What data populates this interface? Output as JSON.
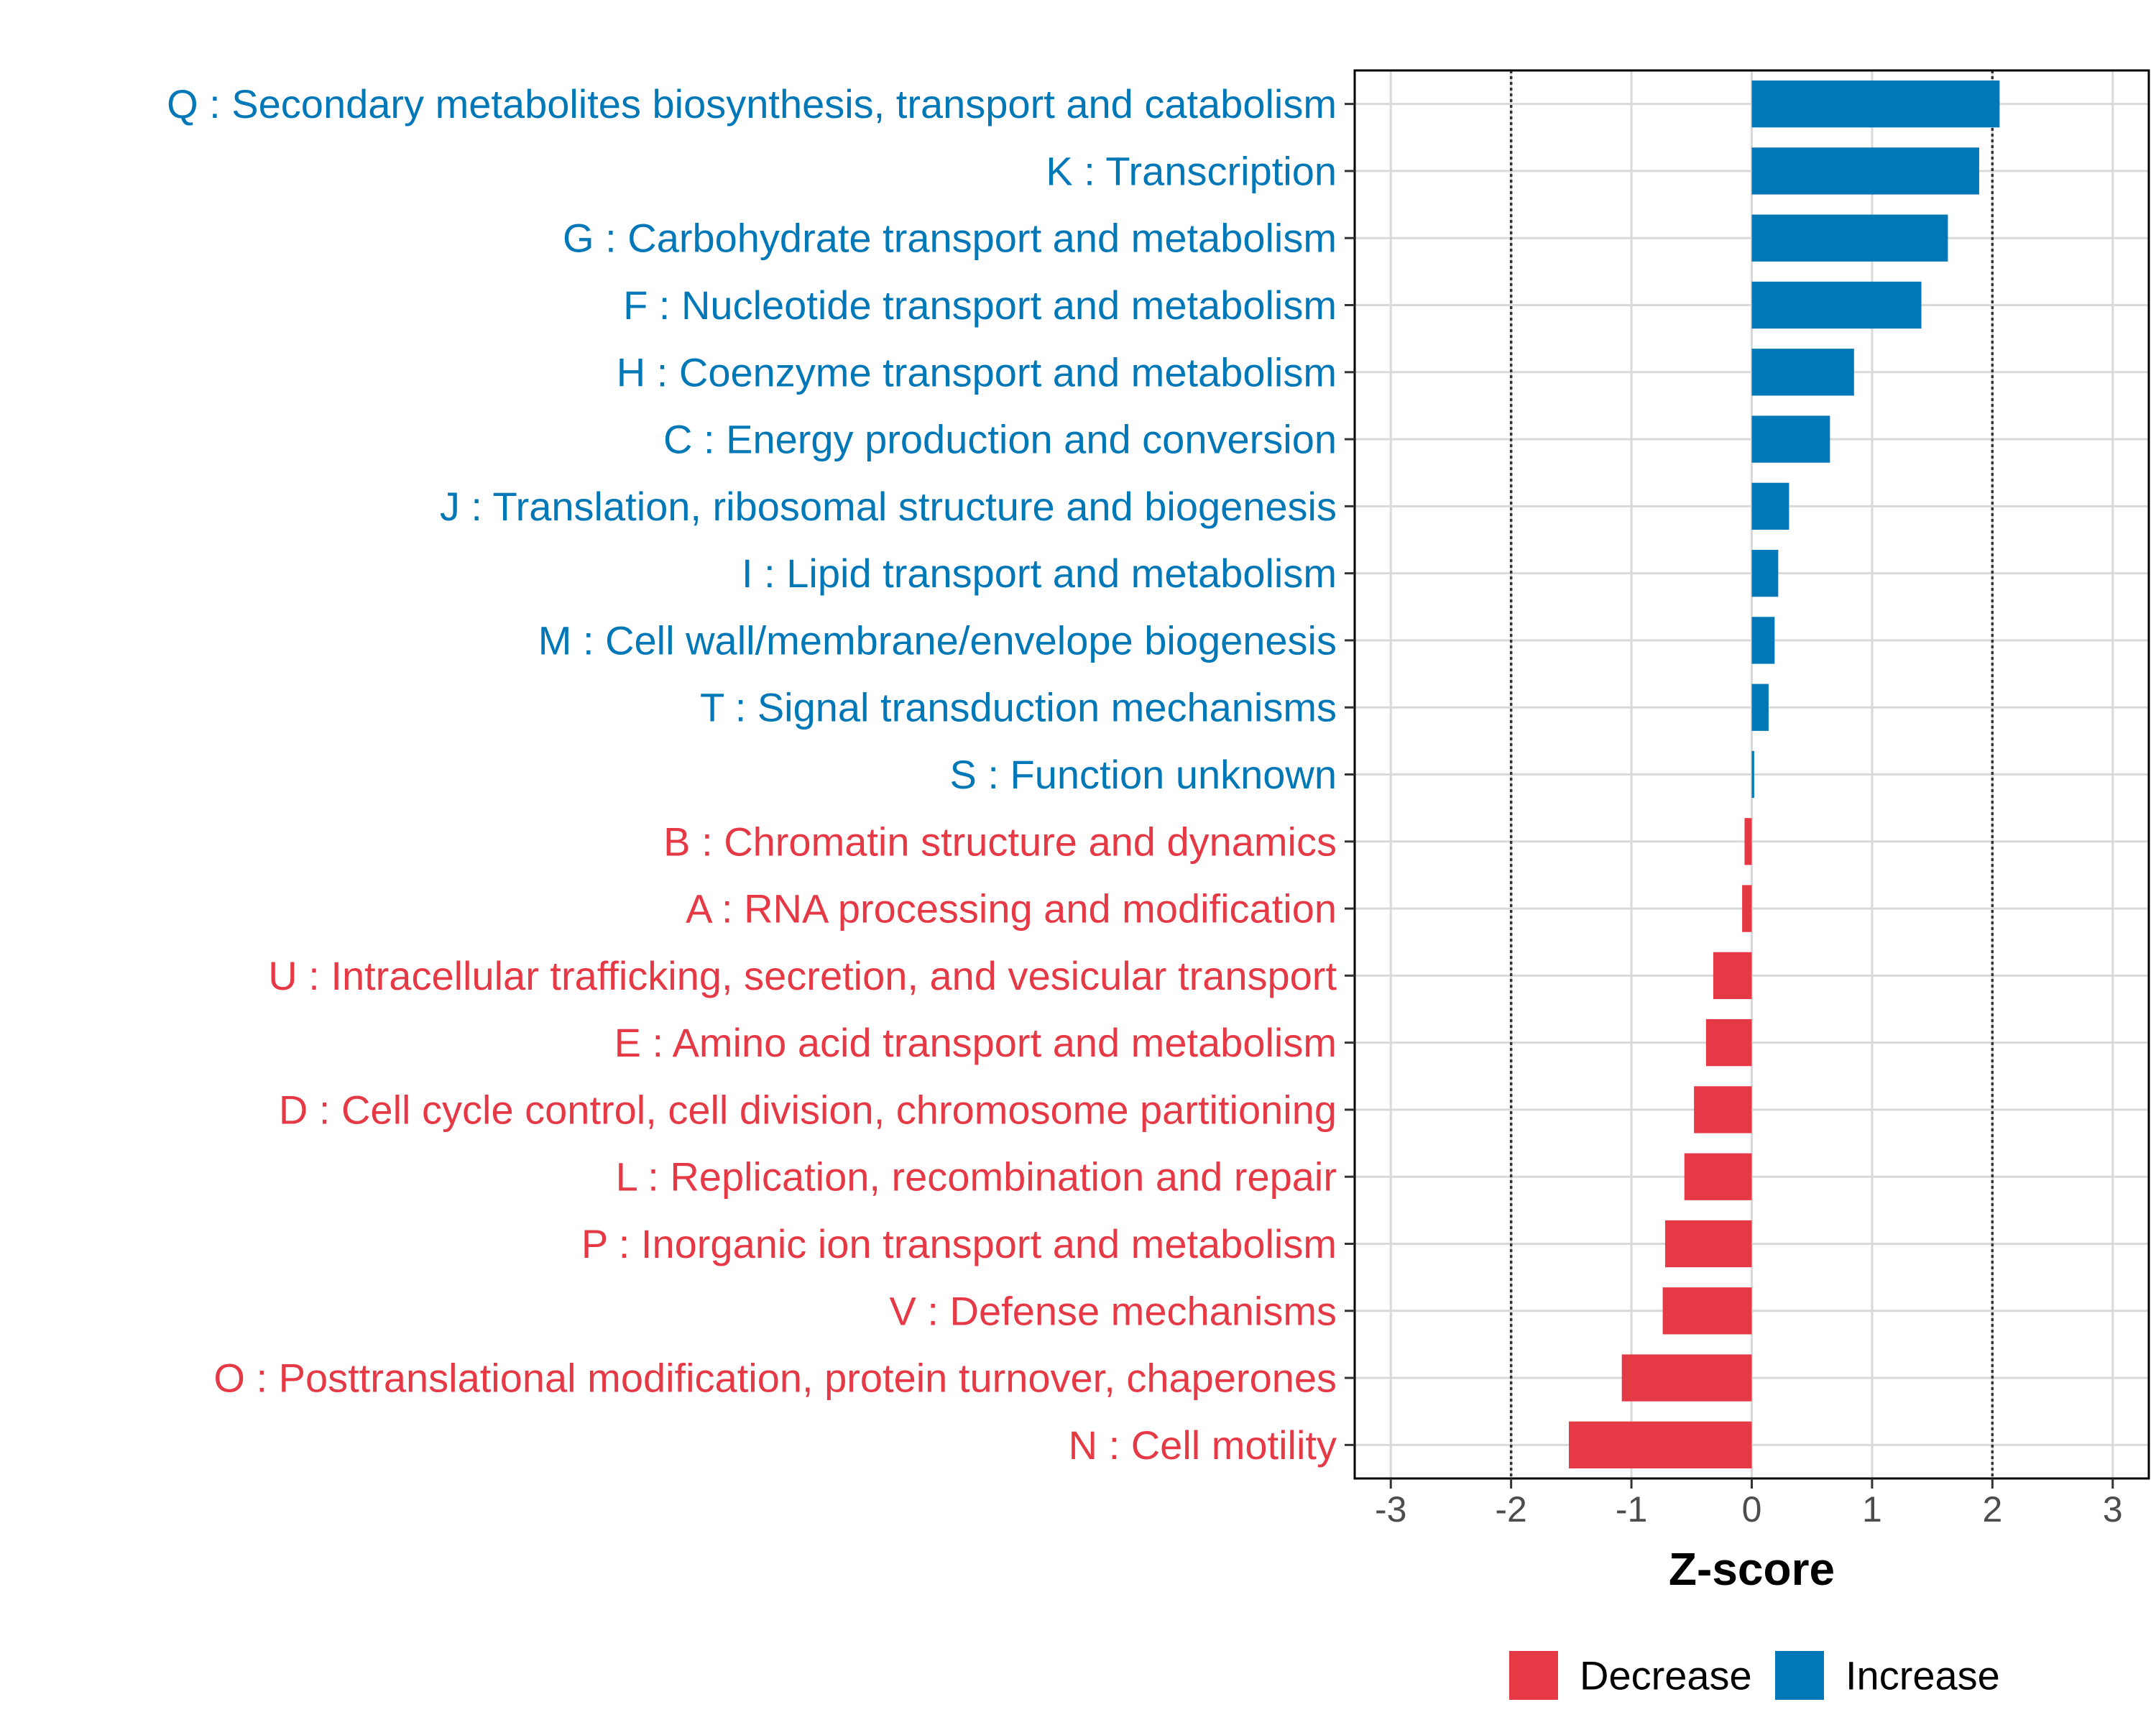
{
  "chart_data": {
    "type": "bar",
    "orientation": "horizontal",
    "xlabel": "Z-score",
    "ylabel": "",
    "xlim": [
      -3.3,
      3.3
    ],
    "xticks": [
      -3,
      -2,
      -1,
      0,
      1,
      2,
      3
    ],
    "tick_labels": [
      "-3",
      "-2",
      "-1",
      "0",
      "1",
      "2",
      "3"
    ],
    "reference_lines": [
      -2,
      2
    ],
    "grid": true,
    "colors": {
      "Decrease": "#e63946",
      "Increase": "#0077b6"
    },
    "categories": [
      "Q : Secondary metabolites biosynthesis, transport and catabolism",
      "K : Transcription",
      "G : Carbohydrate transport and metabolism",
      "F : Nucleotide transport and metabolism",
      "H : Coenzyme transport and metabolism",
      "C : Energy production and conversion",
      "J : Translation, ribosomal structure and biogenesis",
      "I : Lipid transport and metabolism",
      "M : Cell wall/membrane/envelope biogenesis",
      "T : Signal transduction mechanisms",
      "S : Function unknown",
      "B : Chromatin structure and dynamics",
      "A : RNA processing and modification",
      "U : Intracellular trafficking, secretion, and vesicular transport",
      "E : Amino acid transport and metabolism",
      "D : Cell cycle control, cell division, chromosome partitioning",
      "L : Replication, recombination and repair",
      "P : Inorganic ion transport and metabolism",
      "V : Defense mechanisms",
      "O : Posttranslational modification, protein turnover, chaperones",
      "N : Cell motility"
    ],
    "values": [
      2.06,
      1.89,
      1.63,
      1.41,
      0.85,
      0.65,
      0.31,
      0.22,
      0.19,
      0.14,
      0.02,
      -0.06,
      -0.08,
      -0.32,
      -0.38,
      -0.48,
      -0.56,
      -0.72,
      -0.74,
      -1.08,
      -1.52
    ],
    "groups": [
      "Increase",
      "Increase",
      "Increase",
      "Increase",
      "Increase",
      "Increase",
      "Increase",
      "Increase",
      "Increase",
      "Increase",
      "Increase",
      "Decrease",
      "Decrease",
      "Decrease",
      "Decrease",
      "Decrease",
      "Decrease",
      "Decrease",
      "Decrease",
      "Decrease",
      "Decrease"
    ],
    "legend": {
      "position": "bottom",
      "entries": [
        "Decrease",
        "Increase"
      ]
    }
  }
}
